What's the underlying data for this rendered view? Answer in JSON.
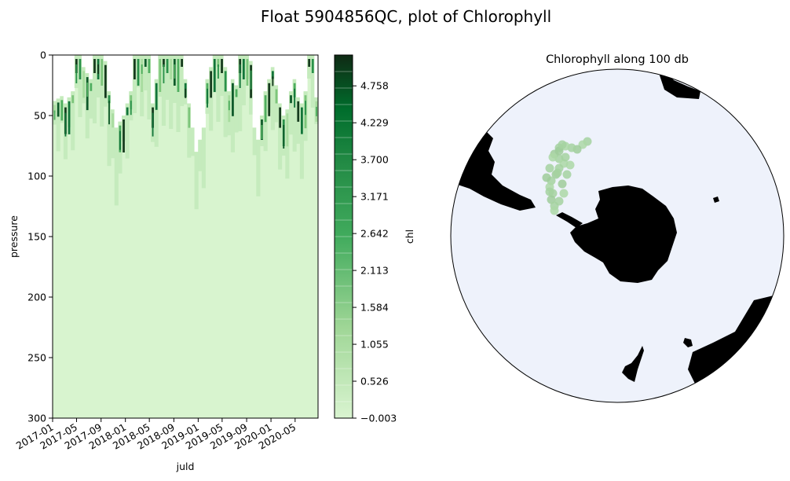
{
  "figure": {
    "title": "Float 5904856QC, plot of Chlorophyll"
  },
  "chart_data": [
    {
      "type": "heatmap",
      "title": "",
      "xlabel": "juld",
      "ylabel": "pressure",
      "x_tick_labels": [
        "2017-01",
        "2017-05",
        "2017-09",
        "2018-01",
        "2018-05",
        "2018-09",
        "2019-01",
        "2019-05",
        "2019-09",
        "2020-01",
        "2020-05"
      ],
      "x_range": [
        "2017-01-01",
        "2020-08-24"
      ],
      "y_range": [
        300,
        0
      ],
      "y_ticks": [
        0,
        50,
        100,
        150,
        200,
        250,
        300
      ],
      "colorbar": {
        "label": "chl",
        "cmap": "Greens",
        "ticks": [
          -0.003,
          0.526,
          1.055,
          1.584,
          2.113,
          2.642,
          3.171,
          3.7,
          4.229,
          4.758
        ],
        "tick_labels": [
          "−0.003",
          "0.526",
          "1.055",
          "1.584",
          "2.113",
          "2.642",
          "3.171",
          "3.700",
          "4.229",
          "4.758"
        ],
        "range": [
          -0.003,
          5.2
        ]
      },
      "profiles_top_pressure": [
        38,
        36,
        34,
        40,
        35,
        30,
        0,
        0,
        10,
        15,
        20,
        0,
        0,
        0,
        5,
        30,
        45,
        60,
        55,
        50,
        40,
        30,
        0,
        0,
        0,
        0,
        0,
        40,
        20,
        0,
        0,
        0,
        0,
        0,
        0,
        0,
        20,
        40,
        60,
        80,
        70,
        60,
        20,
        10,
        0,
        0,
        0,
        10,
        30,
        20,
        25,
        0,
        0,
        0,
        5,
        60,
        70,
        50,
        30,
        20,
        10,
        25,
        40,
        50,
        45,
        30,
        20,
        35,
        40,
        30,
        0,
        0,
        35
      ]
    },
    {
      "type": "map",
      "title": "Chlorophyll along 100 db",
      "projection": "south polar stereographic",
      "series": [
        {
          "values_chl": [
            0.5,
            0.4,
            0.6,
            0.5,
            0.4,
            0.5,
            0.6,
            0.5,
            0.4,
            0.5,
            0.6,
            0.5,
            0.4,
            0.5,
            0.6,
            0.5,
            0.5,
            0.4,
            0.6,
            0.5,
            0.4,
            0.5,
            0.6,
            0.5,
            0.4,
            0.5,
            0.6,
            0.5,
            0.4,
            0.5
          ]
        }
      ]
    }
  ]
}
